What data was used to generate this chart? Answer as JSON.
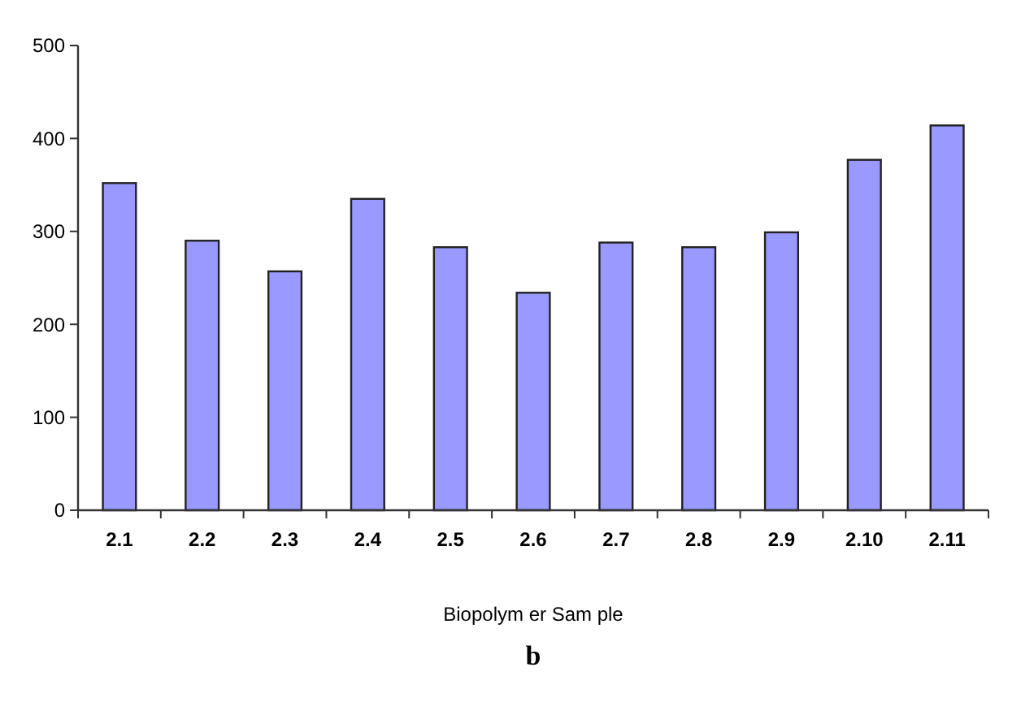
{
  "chart_data": {
    "type": "bar",
    "xlabel": "Biopolym er Sam ple",
    "categories": [
      "2.1",
      "2.2",
      "2.3",
      "2.4",
      "2.5",
      "2.6",
      "2.7",
      "2.8",
      "2.9",
      "2.10",
      "2.11"
    ],
    "values": [
      352,
      290,
      257,
      335,
      283,
      234,
      288,
      283,
      299,
      377,
      414
    ],
    "color": "#9999ff",
    "ylim": [
      0,
      500
    ],
    "yticks": [
      0,
      100,
      200,
      300,
      400,
      500
    ],
    "grid": false,
    "annotations": [
      "b"
    ]
  }
}
